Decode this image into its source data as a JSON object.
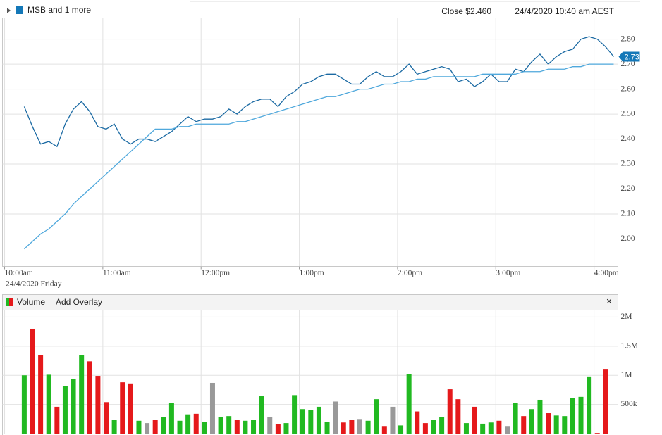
{
  "chart_data": [
    {
      "type": "line",
      "title": "MSB and 1 more",
      "close_label": "Close $2.460",
      "timestamp": "24/4/2020 10:40 am AEST",
      "date_label": "24/4/2020 Friday",
      "last_value": 2.73,
      "x": [
        12,
        17,
        22,
        27,
        32,
        37,
        42,
        47,
        52,
        57,
        62,
        67,
        72,
        77,
        82,
        87,
        92,
        97,
        102,
        107,
        112,
        117,
        122,
        127,
        132,
        137,
        142,
        147,
        152,
        157,
        162,
        167,
        172,
        177,
        182,
        187,
        192,
        197,
        202,
        207,
        212,
        217,
        222,
        227,
        232,
        237,
        242,
        247,
        252,
        257,
        262,
        267,
        272,
        277,
        282,
        287,
        292,
        297,
        302,
        307,
        312,
        317,
        322,
        327,
        332,
        337,
        342,
        347,
        352,
        357,
        362,
        367,
        372
      ],
      "series": [
        {
          "color": "#1b6aa3",
          "values": [
            2.53,
            2.45,
            2.38,
            2.39,
            2.37,
            2.46,
            2.52,
            2.55,
            2.51,
            2.45,
            2.44,
            2.46,
            2.4,
            2.38,
            2.4,
            2.4,
            2.39,
            2.41,
            2.43,
            2.46,
            2.49,
            2.47,
            2.48,
            2.48,
            2.49,
            2.52,
            2.5,
            2.53,
            2.55,
            2.56,
            2.56,
            2.53,
            2.57,
            2.59,
            2.62,
            2.63,
            2.65,
            2.66,
            2.66,
            2.64,
            2.62,
            2.62,
            2.65,
            2.67,
            2.65,
            2.65,
            2.67,
            2.7,
            2.66,
            2.67,
            2.68,
            2.69,
            2.68,
            2.63,
            2.64,
            2.61,
            2.63,
            2.66,
            2.63,
            2.63,
            2.68,
            2.67,
            2.71,
            2.74,
            2.7,
            2.73,
            2.75,
            2.76,
            2.8,
            2.81,
            2.8,
            2.77,
            2.73
          ]
        },
        {
          "color": "#4fa8dc",
          "values": [
            1.96,
            1.99,
            2.02,
            2.04,
            2.07,
            2.1,
            2.14,
            2.17,
            2.2,
            2.23,
            2.26,
            2.29,
            2.32,
            2.35,
            2.38,
            2.41,
            2.44,
            2.44,
            2.44,
            2.45,
            2.45,
            2.46,
            2.46,
            2.46,
            2.46,
            2.46,
            2.47,
            2.47,
            2.48,
            2.49,
            2.5,
            2.51,
            2.52,
            2.53,
            2.54,
            2.55,
            2.56,
            2.57,
            2.57,
            2.58,
            2.59,
            2.6,
            2.6,
            2.61,
            2.62,
            2.62,
            2.63,
            2.63,
            2.64,
            2.64,
            2.65,
            2.65,
            2.65,
            2.65,
            2.65,
            2.65,
            2.66,
            2.66,
            2.66,
            2.66,
            2.66,
            2.67,
            2.67,
            2.67,
            2.68,
            2.68,
            2.68,
            2.69,
            2.69,
            2.7,
            2.7,
            2.7,
            2.7
          ]
        }
      ],
      "xlim": [
        -1.3,
        374.6
      ],
      "xticks": [
        {
          "value": 0,
          "label": "10:00am"
        },
        {
          "value": 60,
          "label": "11:00am"
        },
        {
          "value": 120,
          "label": "12:00pm"
        },
        {
          "value": 180,
          "label": "1:00pm"
        },
        {
          "value": 240,
          "label": "2:00pm"
        },
        {
          "value": 300,
          "label": "3:00pm"
        },
        {
          "value": 360,
          "label": "4:00pm"
        }
      ],
      "ylim": [
        1.89,
        2.885
      ],
      "yticks": [
        {
          "value": 2.0,
          "label": "2.00"
        },
        {
          "value": 2.1,
          "label": "2.10"
        },
        {
          "value": 2.2,
          "label": "2.20"
        },
        {
          "value": 2.3,
          "label": "2.30"
        },
        {
          "value": 2.4,
          "label": "2.40"
        },
        {
          "value": 2.5,
          "label": "2.50"
        },
        {
          "value": 2.6,
          "label": "2.60"
        },
        {
          "value": 2.7,
          "label": "2.70"
        },
        {
          "value": 2.8,
          "label": "2.80"
        }
      ],
      "grid": true
    },
    {
      "type": "bar",
      "title": "Volume",
      "overlay_label": "Add Overlay",
      "close_label": "×",
      "x": [
        12,
        17,
        22,
        27,
        32,
        37,
        42,
        47,
        52,
        57,
        62,
        67,
        72,
        77,
        82,
        87,
        92,
        97,
        102,
        107,
        112,
        117,
        122,
        127,
        132,
        137,
        142,
        147,
        152,
        157,
        162,
        167,
        172,
        177,
        182,
        187,
        192,
        197,
        202,
        207,
        212,
        217,
        222,
        227,
        232,
        237,
        242,
        247,
        252,
        257,
        262,
        267,
        272,
        277,
        282,
        287,
        292,
        297,
        302,
        307,
        312,
        317,
        322,
        327,
        332,
        337,
        342,
        347,
        352,
        357,
        362,
        367
      ],
      "values": [
        1000000,
        1800000,
        1350000,
        1010000,
        460000,
        820000,
        930000,
        1350000,
        1240000,
        990000,
        540000,
        240000,
        880000,
        860000,
        220000,
        180000,
        230000,
        280000,
        520000,
        220000,
        330000,
        340000,
        200000,
        870000,
        290000,
        300000,
        230000,
        220000,
        230000,
        640000,
        290000,
        160000,
        180000,
        660000,
        420000,
        400000,
        460000,
        200000,
        550000,
        190000,
        230000,
        250000,
        220000,
        590000,
        130000,
        460000,
        140000,
        1020000,
        380000,
        180000,
        230000,
        280000,
        760000,
        590000,
        180000,
        460000,
        170000,
        190000,
        220000,
        130000,
        520000,
        300000,
        420000,
        580000,
        350000,
        310000,
        300000,
        610000,
        630000,
        980000,
        10000,
        1110000
      ],
      "colors": [
        "#21b921",
        "#e5191b",
        "#e5191b",
        "#21b921",
        "#e5191b",
        "#21b921",
        "#21b921",
        "#21b921",
        "#e5191b",
        "#e5191b",
        "#e5191b",
        "#21b921",
        "#e5191b",
        "#e5191b",
        "#21b921",
        "#999999",
        "#e5191b",
        "#21b921",
        "#21b921",
        "#21b921",
        "#21b921",
        "#e5191b",
        "#21b921",
        "#999999",
        "#21b921",
        "#21b921",
        "#e5191b",
        "#21b921",
        "#21b921",
        "#21b921",
        "#999999",
        "#e5191b",
        "#21b921",
        "#21b921",
        "#21b921",
        "#21b921",
        "#21b921",
        "#21b921",
        "#999999",
        "#e5191b",
        "#e5191b",
        "#999999",
        "#21b921",
        "#21b921",
        "#e5191b",
        "#999999",
        "#21b921",
        "#21b921",
        "#e5191b",
        "#e5191b",
        "#21b921",
        "#21b921",
        "#e5191b",
        "#e5191b",
        "#21b921",
        "#e5191b",
        "#21b921",
        "#21b921",
        "#e5191b",
        "#999999",
        "#21b921",
        "#e5191b",
        "#21b921",
        "#21b921",
        "#e5191b",
        "#21b921",
        "#21b921",
        "#21b921",
        "#21b921",
        "#21b921",
        "#e5191b",
        "#e5191b"
      ],
      "xlim": [
        -1.3,
        374.6
      ],
      "ylim": [
        0,
        2120000
      ],
      "yticks": [
        {
          "value": 500000,
          "label": "500k"
        },
        {
          "value": 1000000,
          "label": "1M"
        },
        {
          "value": 1500000,
          "label": "1.5M"
        },
        {
          "value": 2000000,
          "label": "2M"
        }
      ],
      "grid": true
    }
  ]
}
